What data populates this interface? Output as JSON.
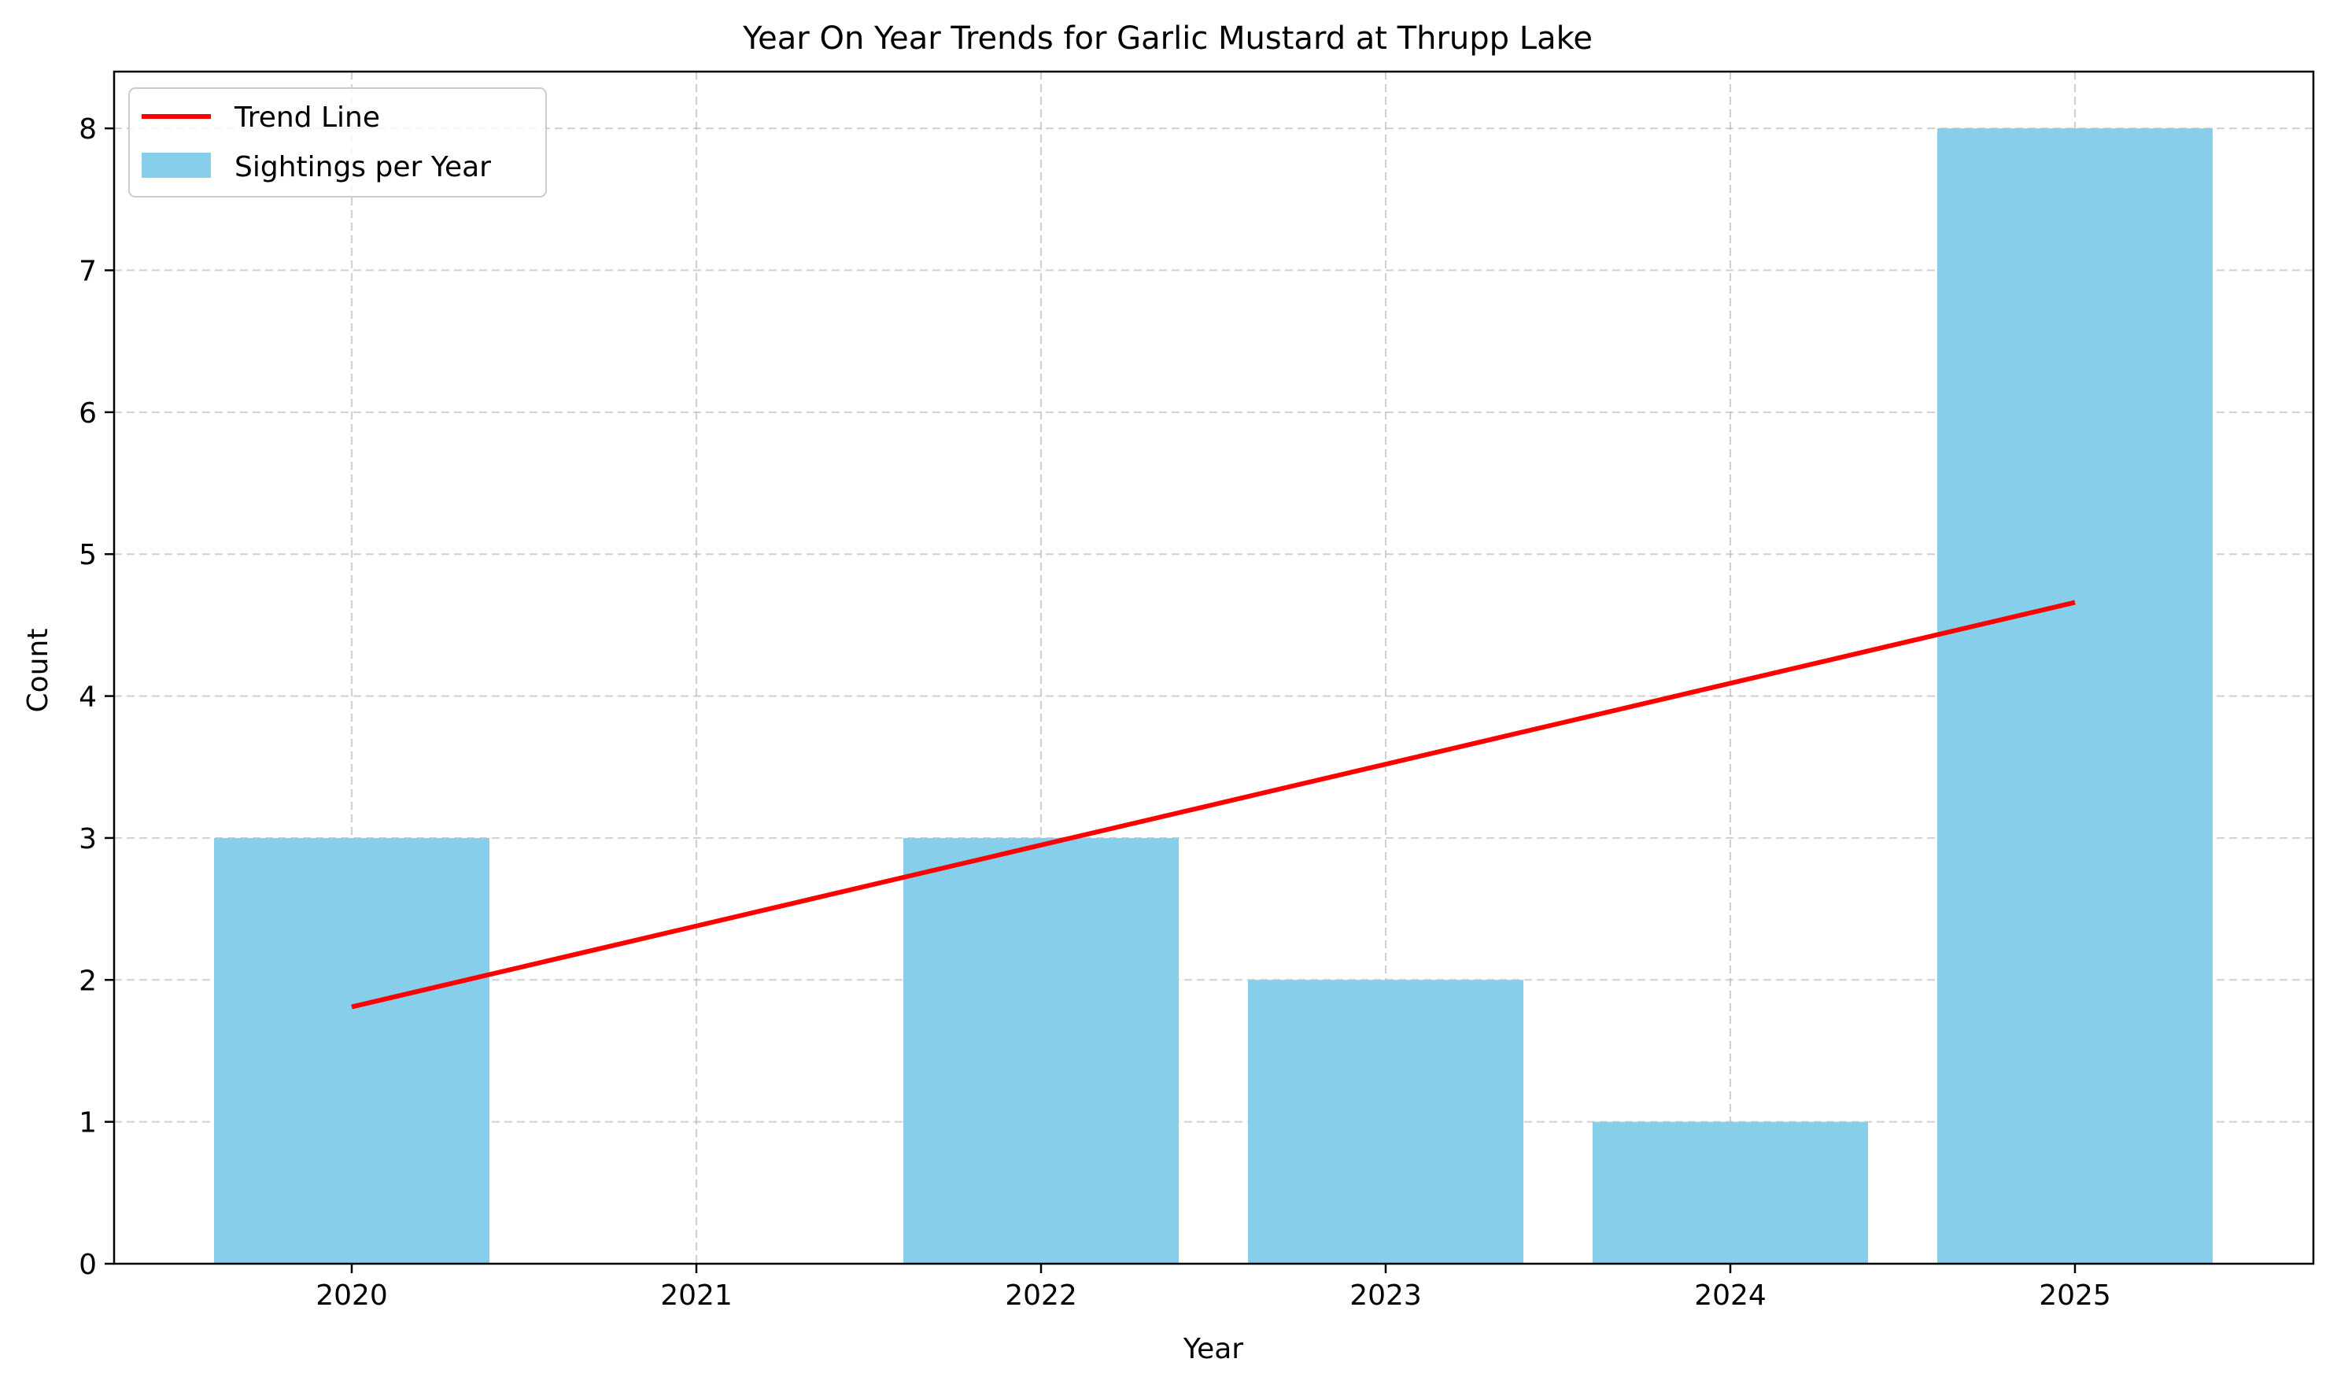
{
  "chart_data": {
    "type": "bar",
    "title": "Year On Year Trends for Garlic Mustard at Thrupp Lake",
    "xlabel": "Year",
    "ylabel": "Count",
    "categories": [
      "2020",
      "2021",
      "2022",
      "2023",
      "2024",
      "2025"
    ],
    "series": [
      {
        "name": "Sightings per Year",
        "type": "bar",
        "color": "#87ceeb",
        "values": [
          3,
          0,
          3,
          2,
          1,
          8
        ]
      },
      {
        "name": "Trend Line",
        "type": "line",
        "color": "#ff0000",
        "values": [
          1.81,
          2.38,
          2.95,
          3.52,
          4.09,
          4.66
        ]
      }
    ],
    "ylim": [
      0,
      8.4
    ],
    "yticks": [
      0,
      1,
      2,
      3,
      4,
      5,
      6,
      7,
      8
    ],
    "grid": true,
    "legend_position": "top-left"
  }
}
